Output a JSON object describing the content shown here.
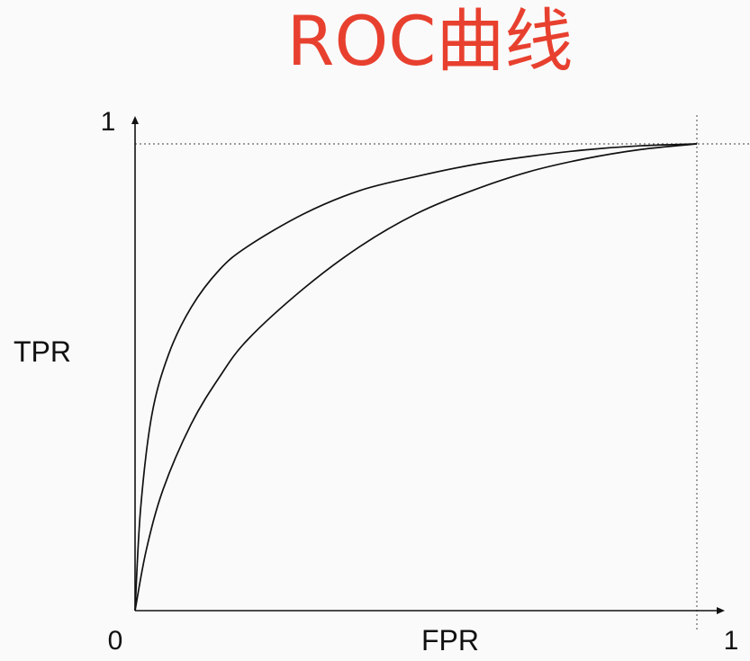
{
  "colors": {
    "background": "#fafafa",
    "title": "#e8402f",
    "axis": "#111111",
    "curve": "#111111",
    "guide": "#666666"
  },
  "chart_data": {
    "type": "line",
    "title": "ROC曲线",
    "xlabel": "FPR",
    "ylabel": "TPR",
    "xlim": [
      0,
      1
    ],
    "ylim": [
      0,
      1
    ],
    "grid": false,
    "x_ticks": [
      {
        "value": 0,
        "label": "0"
      },
      {
        "value": 1,
        "label": "1"
      }
    ],
    "y_ticks": [
      {
        "value": 1,
        "label": "1"
      }
    ],
    "guide_lines": [
      {
        "axis": "x",
        "value": 1
      },
      {
        "axis": "y",
        "value": 1
      }
    ],
    "series": [
      {
        "x": [
          0,
          0.01,
          0.03,
          0.06,
          0.1,
          0.15,
          0.2,
          0.3,
          0.4,
          0.5,
          0.6,
          0.7,
          0.8,
          0.9,
          1
        ],
        "y": [
          0,
          0.22,
          0.42,
          0.55,
          0.65,
          0.73,
          0.78,
          0.85,
          0.9,
          0.93,
          0.955,
          0.973,
          0.987,
          0.996,
          1
        ]
      },
      {
        "x": [
          0,
          0.02,
          0.05,
          0.1,
          0.15,
          0.2,
          0.3,
          0.4,
          0.5,
          0.6,
          0.7,
          0.8,
          0.9,
          1
        ],
        "y": [
          0,
          0.13,
          0.26,
          0.4,
          0.5,
          0.58,
          0.69,
          0.78,
          0.85,
          0.9,
          0.94,
          0.968,
          0.988,
          1
        ]
      }
    ]
  }
}
